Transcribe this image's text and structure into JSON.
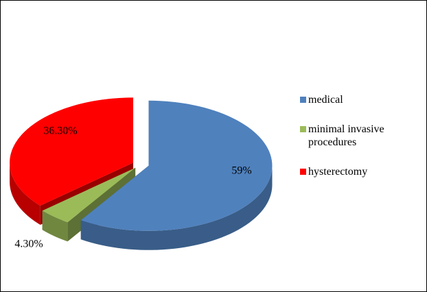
{
  "chart_data": {
    "type": "pie",
    "categories": [
      "medical",
      "minimal invasive procedures",
      "hysterectomy"
    ],
    "values": [
      59,
      4.3,
      36.3
    ],
    "value_labels": [
      "59%",
      "4.30%",
      "36.30%"
    ],
    "colors": [
      "#4f81bd",
      "#9bbb59",
      "#ff0000"
    ],
    "legend": "right"
  }
}
